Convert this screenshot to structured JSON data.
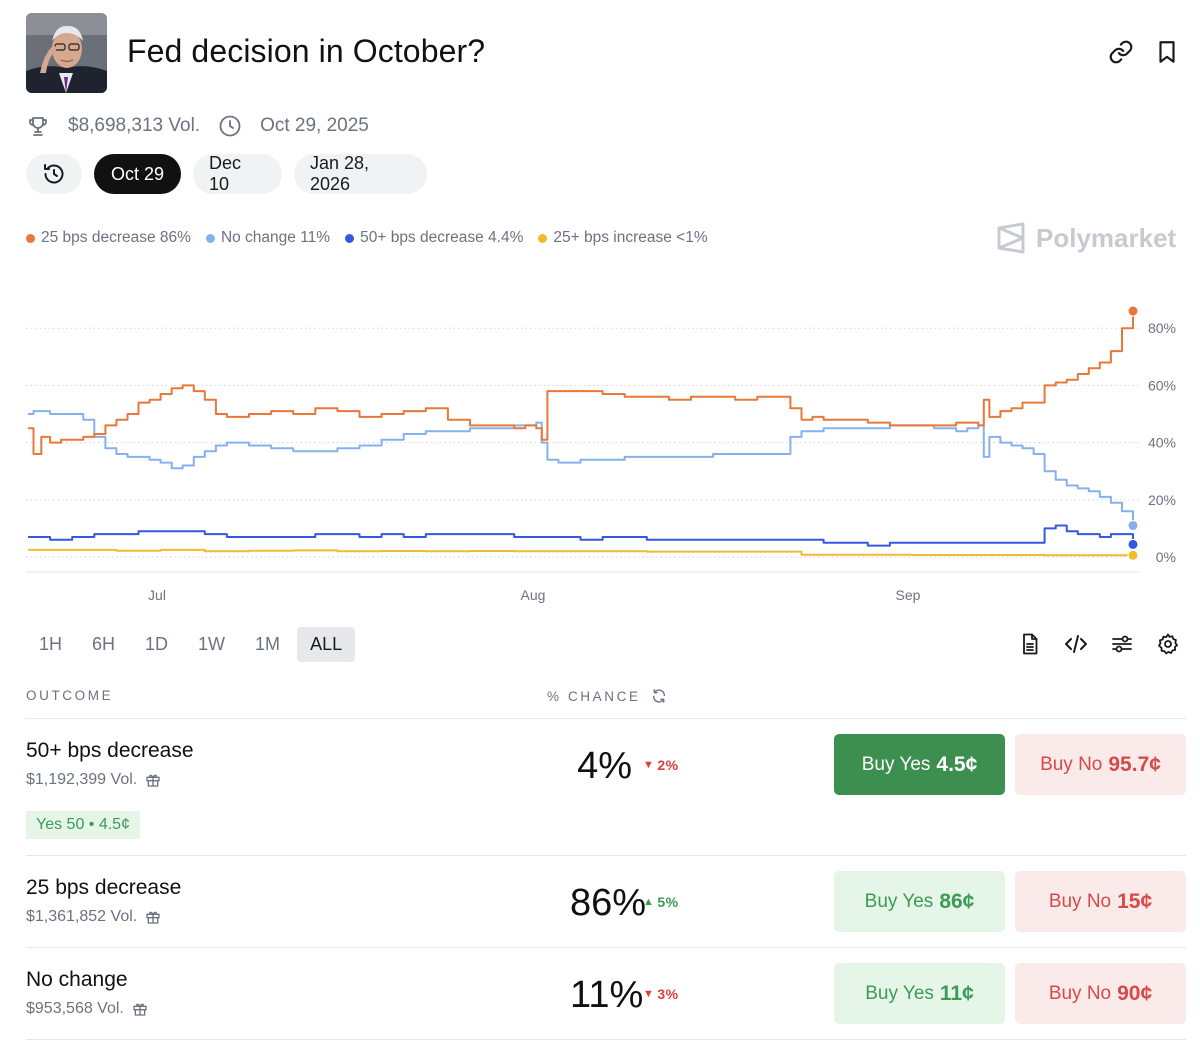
{
  "header": {
    "title": "Fed decision in October?",
    "icons": {
      "link": "link-icon",
      "bookmark": "bookmark-icon"
    }
  },
  "meta": {
    "volume": "$8,698,313 Vol.",
    "end_date": "Oct 29, 2025"
  },
  "date_tabs": [
    "Oct 29",
    "Dec 10",
    "Jan 28, 2026"
  ],
  "brand": "Polymarket",
  "legend": [
    {
      "label": "25 bps decrease 86%",
      "color": "#e8773a"
    },
    {
      "label": "No change 11%",
      "color": "#86b1ee"
    },
    {
      "label": "50+ bps decrease 4.4%",
      "color": "#3657e0"
    },
    {
      "label": "25+ bps increase <1%",
      "color": "#f2bb2e"
    }
  ],
  "chart_data": {
    "type": "line",
    "title": "",
    "xlabel": "",
    "ylabel": "",
    "x_ticks": [
      "Jul",
      "Aug",
      "Sep"
    ],
    "y_ticks": [
      "80%",
      "60%",
      "40%",
      "20%",
      "0%"
    ],
    "ylim": [
      0,
      100
    ],
    "x_range": [
      0,
      100
    ],
    "series": [
      {
        "name": "25 bps decrease",
        "color": "#e8773a",
        "x": [
          0,
          0.5,
          1.2,
          2,
          3,
          4,
          5,
          6,
          7,
          8,
          9,
          10,
          11,
          12,
          13,
          14,
          15,
          16,
          17,
          18,
          19,
          20,
          22,
          24,
          26,
          28,
          30,
          32,
          34,
          36,
          38,
          40,
          42,
          44,
          45,
          46,
          46.5,
          47,
          48,
          50,
          52,
          54,
          56,
          58,
          60,
          62,
          64,
          66,
          68,
          69,
          70,
          71,
          72,
          74,
          76,
          78,
          80,
          82,
          84,
          85,
          86,
          86.5,
          87,
          88,
          89,
          90,
          91,
          92,
          93,
          94,
          95,
          96,
          97,
          98,
          99,
          100
        ],
        "values": [
          45,
          36,
          42,
          40,
          41,
          41,
          42,
          43,
          46,
          48,
          50,
          54,
          55,
          57,
          59,
          60,
          58,
          55,
          50,
          49,
          49,
          50,
          51,
          50,
          52,
          51,
          49,
          50,
          51,
          52,
          48,
          46,
          46,
          45,
          46,
          45,
          41,
          58,
          58,
          58,
          57,
          56,
          56,
          55,
          56,
          56,
          55,
          56,
          56,
          52,
          48,
          49,
          48,
          48,
          47,
          46,
          46,
          46,
          47,
          47,
          46,
          55,
          49,
          51,
          52,
          54,
          54,
          60,
          61,
          62,
          64,
          66,
          68,
          72,
          80,
          86
        ]
      },
      {
        "name": "No change",
        "color": "#86b1ee",
        "x": [
          0,
          0.5,
          1,
          2,
          3,
          4,
          5,
          6,
          7,
          8,
          9,
          10,
          11,
          12,
          13,
          14,
          15,
          16,
          17,
          18,
          19,
          20,
          22,
          24,
          26,
          28,
          30,
          32,
          34,
          36,
          38,
          40,
          42,
          44,
          45,
          46,
          46.5,
          47,
          48,
          50,
          52,
          54,
          56,
          58,
          60,
          62,
          64,
          66,
          68,
          69,
          70,
          71,
          72,
          74,
          76,
          78,
          80,
          82,
          84,
          85,
          86,
          86.5,
          87,
          88,
          89,
          90,
          91,
          92,
          93,
          94,
          95,
          96,
          97,
          98,
          99,
          100
        ],
        "values": [
          50,
          51,
          51,
          50,
          50,
          50,
          48,
          42,
          38,
          36,
          35,
          35,
          34,
          33,
          31,
          32,
          35,
          37,
          39,
          40,
          40,
          39,
          38,
          37,
          37,
          38,
          39,
          41,
          43,
          44,
          44,
          45,
          45,
          46,
          46,
          47,
          40,
          34,
          33,
          34,
          34,
          35,
          35,
          35,
          35,
          36,
          36,
          36,
          36,
          42,
          44,
          44,
          45,
          45,
          45,
          46,
          46,
          45,
          44,
          45,
          46,
          35,
          42,
          40,
          39,
          38,
          36,
          30,
          27,
          25,
          24,
          23,
          21,
          19,
          16,
          11
        ]
      },
      {
        "name": "50+ bps decrease",
        "color": "#3657e0",
        "x": [
          0,
          2,
          4,
          6,
          8,
          10,
          12,
          14,
          16,
          18,
          20,
          22,
          24,
          26,
          28,
          30,
          32,
          34,
          36,
          38,
          40,
          42,
          44,
          46,
          48,
          50,
          52,
          54,
          56,
          58,
          60,
          62,
          64,
          66,
          68,
          70,
          72,
          74,
          76,
          78,
          80,
          82,
          84,
          86,
          88,
          90,
          91,
          92,
          93,
          94,
          95,
          96,
          97,
          98,
          99,
          100
        ],
        "values": [
          7,
          6,
          7,
          8,
          8,
          9,
          9,
          9,
          8,
          7,
          7,
          7,
          7,
          8,
          8,
          7,
          8,
          7,
          8,
          8,
          8,
          8,
          7,
          7,
          7,
          6,
          7,
          7,
          6,
          6,
          6,
          6,
          6,
          6,
          6,
          6,
          5,
          5,
          4,
          5,
          5,
          5,
          5,
          5,
          5,
          5,
          5,
          10,
          11,
          9,
          8,
          8,
          7,
          8,
          8,
          4.4
        ]
      },
      {
        "name": "25+ bps increase",
        "color": "#f2bb2e",
        "x": [
          0,
          4,
          8,
          12,
          16,
          20,
          24,
          28,
          32,
          36,
          40,
          44,
          48,
          52,
          56,
          60,
          64,
          68,
          70,
          72,
          76,
          80,
          84,
          88,
          92,
          96,
          100
        ],
        "values": [
          2.5,
          2.5,
          2.2,
          2.5,
          2,
          2.2,
          2.3,
          2,
          2.1,
          2,
          2.1,
          2,
          2,
          2,
          1.9,
          1.9,
          1.9,
          1.9,
          0.8,
          0.8,
          0.8,
          0.7,
          0.7,
          0.7,
          0.6,
          0.6,
          0.6
        ]
      }
    ]
  },
  "time_ranges": [
    "1H",
    "6H",
    "1D",
    "1W",
    "1M",
    "ALL"
  ],
  "active_range": "ALL",
  "table": {
    "col_outcome": "OUTCOME",
    "col_chance": "% CHANCE",
    "rows": [
      {
        "name": "50+ bps decrease",
        "volume": "$1,192,399 Vol.",
        "chance": "4%",
        "delta": "2%",
        "delta_dir": "down",
        "yes_label": "Buy Yes",
        "yes_price": "4.5¢",
        "no_label": "Buy No",
        "no_price": "95.7¢",
        "position": "Yes 50 • 4.5¢"
      },
      {
        "name": "25 bps decrease",
        "volume": "$1,361,852 Vol.",
        "chance": "86%",
        "delta": "5%",
        "delta_dir": "up",
        "yes_label": "Buy Yes",
        "yes_price": "86¢",
        "no_label": "Buy No",
        "no_price": "15¢"
      },
      {
        "name": "No change",
        "volume": "$953,568 Vol.",
        "chance": "11%",
        "delta": "3%",
        "delta_dir": "down",
        "yes_label": "Buy Yes",
        "yes_price": "11¢",
        "no_label": "Buy No",
        "no_price": "90¢"
      }
    ]
  }
}
